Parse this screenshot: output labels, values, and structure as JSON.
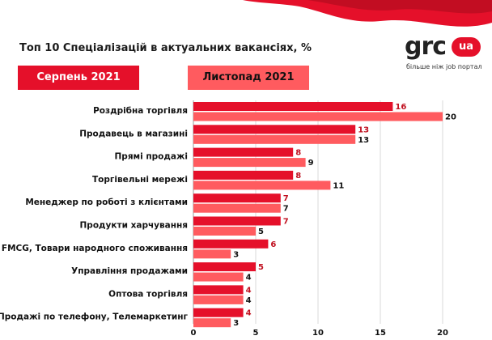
{
  "title": "Топ 10 Спеціалізацій в актуальних вакансіях, %",
  "logo": {
    "name": "grc",
    "badge": "ua",
    "tagline": "більше ніж job портал"
  },
  "colors": {
    "series1": "#e5102a",
    "series2": "#ff5b5f",
    "value1": "#c0101f",
    "value2": "#111111"
  },
  "chart_data": {
    "type": "bar",
    "orientation": "horizontal",
    "title": "Топ 10 Спеціалізацій в актуальних вакансіях, %",
    "categories": [
      "Роздрібна торгівля",
      "Продавець в магазині",
      "Прямі продажі",
      "Торгівельні мережі",
      "Менеджер по роботі з клієнтами",
      "Продукти харчування",
      "FMCG, Товари народного споживання",
      "Управління продажами",
      "Оптова торгівля",
      "Продажі по телефону, Телемаркетинг"
    ],
    "series": [
      {
        "name": "Серпень 2021",
        "values": [
          16,
          13,
          8,
          8,
          7,
          7,
          6,
          5,
          4,
          4
        ]
      },
      {
        "name": "Листопад 2021",
        "values": [
          20,
          13,
          9,
          11,
          7,
          5,
          3,
          4,
          4,
          3
        ]
      }
    ],
    "xlim": [
      0,
      22
    ],
    "xticks": [
      0,
      5,
      10,
      15,
      20
    ],
    "grid": true,
    "legend": "top-left"
  }
}
